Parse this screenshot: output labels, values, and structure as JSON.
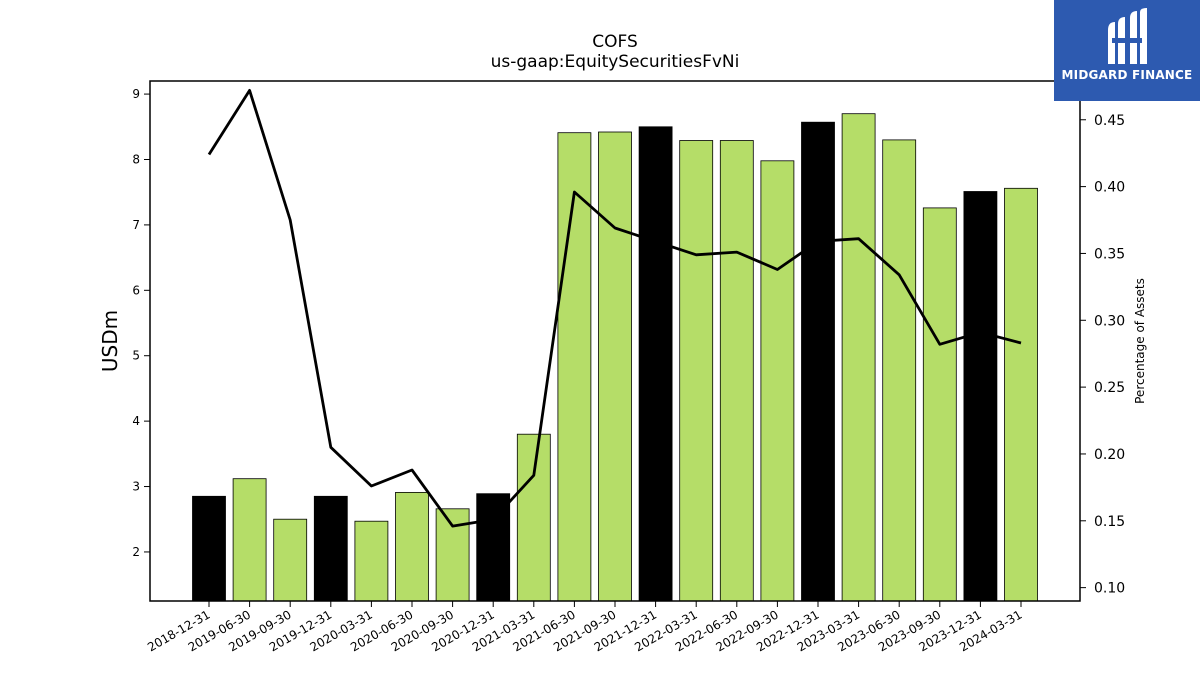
{
  "chart_data": {
    "type": "bar",
    "title": "COFS",
    "subtitle": "us-gaap:EquitySecuritiesFvNi",
    "ylabel": "USDm",
    "y2label": "Percentage of Assets",
    "ylim": [
      1.25,
      9.2
    ],
    "y2lim": [
      0.09,
      0.479
    ],
    "yticks": [
      2,
      3,
      4,
      5,
      6,
      7,
      8,
      9
    ],
    "y2ticks": [
      "0.10",
      "0.15",
      "0.20",
      "0.25",
      "0.30",
      "0.35",
      "0.40",
      "0.45"
    ],
    "categories": [
      "2018-12-31",
      "2019-06-30",
      "2019-09-30",
      "2019-12-31",
      "2020-03-31",
      "2020-06-30",
      "2020-09-30",
      "2020-12-31",
      "2021-03-31",
      "2021-06-30",
      "2021-09-30",
      "2021-12-31",
      "2022-03-31",
      "2022-06-30",
      "2022-09-30",
      "2022-12-31",
      "2023-03-31",
      "2023-06-30",
      "2023-09-30",
      "2023-12-31",
      "2024-03-31"
    ],
    "series": [
      {
        "kind": "bar",
        "values": [
          2.85,
          3.12,
          2.5,
          2.85,
          2.47,
          2.91,
          2.66,
          2.89,
          3.8,
          8.41,
          8.42,
          8.5,
          8.29,
          8.29,
          7.98,
          8.57,
          8.7,
          8.3,
          7.26,
          7.51,
          7.56
        ],
        "bar_colors": [
          "#000000",
          "#b5dd68",
          "#b5dd68",
          "#000000",
          "#b5dd68",
          "#b5dd68",
          "#b5dd68",
          "#000000",
          "#b5dd68",
          "#b5dd68",
          "#b5dd68",
          "#000000",
          "#b5dd68",
          "#b5dd68",
          "#b5dd68",
          "#000000",
          "#b5dd68",
          "#b5dd68",
          "#b5dd68",
          "#000000",
          "#b5dd68"
        ]
      },
      {
        "kind": "line",
        "axis": "right",
        "color": "#000000",
        "values": [
          0.424,
          0.472,
          0.375,
          0.205,
          0.176,
          0.188,
          0.146,
          0.151,
          0.184,
          0.396,
          0.369,
          0.359,
          0.349,
          0.351,
          0.338,
          0.359,
          0.361,
          0.334,
          0.282,
          0.291,
          0.283
        ]
      }
    ],
    "grid": false
  },
  "branding": {
    "name": "MIDGARD FINANCE",
    "bg_color": "#2d5ab0",
    "icon": "midgard-logo-icon"
  }
}
